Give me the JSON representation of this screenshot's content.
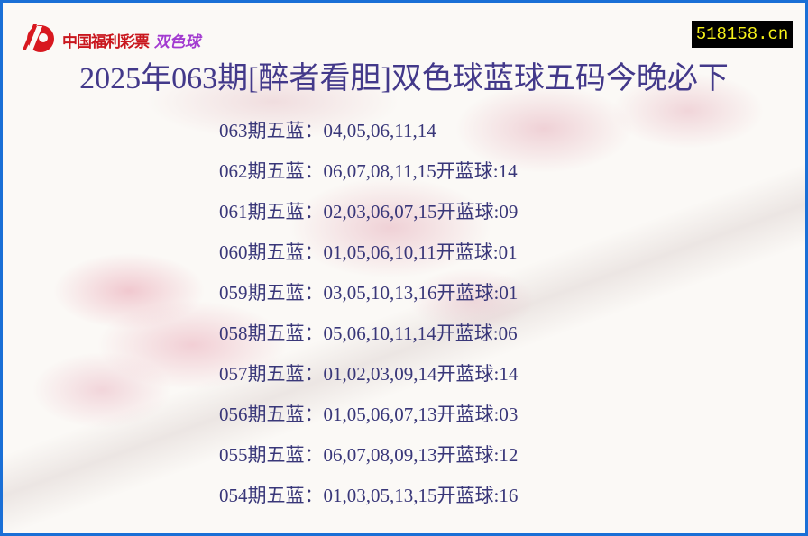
{
  "logo": {
    "text": "中国福利彩票",
    "sub": "双色球",
    "colors": {
      "red": "#c9161d",
      "purple": "#a23ad0"
    }
  },
  "site": "518158.cn",
  "title": "2025年063期[醉者看胆]双色球蓝球五码今晚必下",
  "rows": [
    {
      "label": "063期五蓝：",
      "nums": "04,05,06,11,14",
      "result": ""
    },
    {
      "label": "062期五蓝：",
      "nums": "06,07,08,11,15",
      "result": "开蓝球:14"
    },
    {
      "label": "061期五蓝：",
      "nums": "02,03,06,07,15",
      "result": "开蓝球:09"
    },
    {
      "label": "060期五蓝：",
      "nums": "01,05,06,10,11",
      "result": "开蓝球:01"
    },
    {
      "label": "059期五蓝：",
      "nums": "03,05,10,13,16",
      "result": "开蓝球:01"
    },
    {
      "label": "058期五蓝：",
      "nums": "05,06,10,11,14",
      "result": "开蓝球:06"
    },
    {
      "label": "057期五蓝：",
      "nums": "01,02,03,09,14",
      "result": "开蓝球:14"
    },
    {
      "label": "056期五蓝：",
      "nums": "01,05,06,07,13",
      "result": "开蓝球:03"
    },
    {
      "label": "055期五蓝：",
      "nums": "06,07,08,09,13",
      "result": "开蓝球:12"
    },
    {
      "label": "054期五蓝：",
      "nums": "01,03,05,13,15",
      "result": "开蓝球:16"
    }
  ],
  "colors": {
    "border": "#1a6fd6",
    "text": "#393779",
    "site_bg": "#000000",
    "site_text": "#f6f21a"
  }
}
